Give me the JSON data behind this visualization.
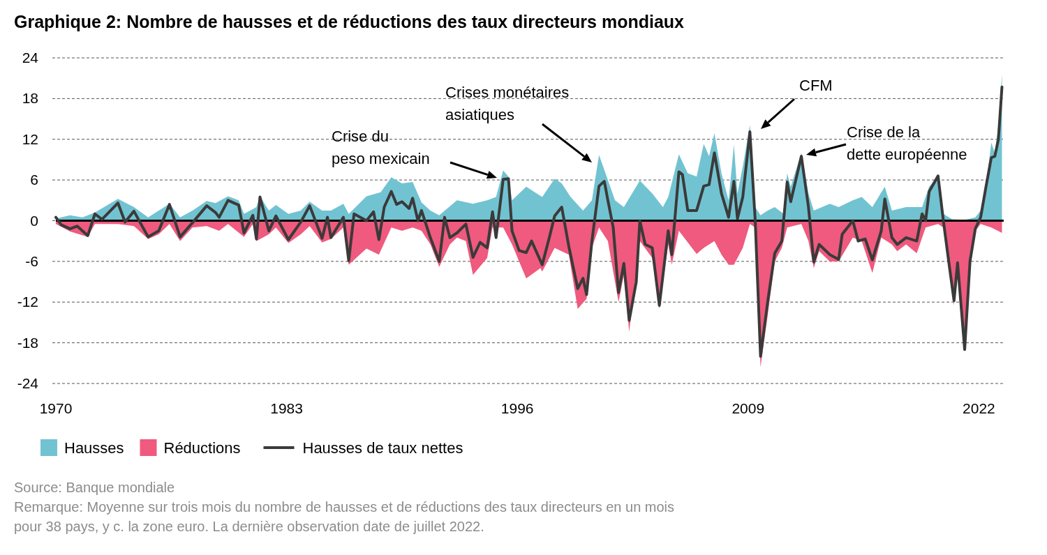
{
  "chart_data": {
    "type": "area",
    "title": "Graphique 2: Nombre de hausses et de réductions des taux directeurs mondiaux",
    "xlim": [
      1970,
      2023.4
    ],
    "xticks": [
      1970,
      1983,
      1996,
      2009,
      2022
    ],
    "ylim": [
      -24,
      24
    ],
    "yticks": [
      -24,
      -18,
      -12,
      -6,
      0,
      6,
      12,
      18,
      24
    ],
    "grid": "y",
    "legend": "bottom",
    "ref_lines": [
      {
        "axis": "y",
        "value": 0,
        "color": "#000000"
      }
    ],
    "series": [
      {
        "name": "Hausses",
        "type": "area",
        "color": "#72c3d1",
        "x": [
          1970,
          1970.8,
          1971.5,
          1972.2,
          1973.5,
          1974.4,
          1975.2,
          1975.8,
          1976.4,
          1977,
          1977.7,
          1978.5,
          1979,
          1979.7,
          1980.3,
          1980.6,
          1981.3,
          1981.5,
          1982,
          1982.4,
          1983.1,
          1983.8,
          1984.3,
          1985,
          1985.5,
          1986.2,
          1986.5,
          1987.5,
          1988.3,
          1988.9,
          1989.5,
          1990.1,
          1990.6,
          1991.1,
          1991.6,
          1992.6,
          1993.5,
          1994.3,
          1994.8,
          1995.2,
          1995.5,
          1995.7,
          1996.5,
          1997.4,
          1998.1,
          1998.5,
          1999,
          1999.7,
          2000.2,
          2000.6,
          2001.1,
          2001.5,
          2002,
          2002.9,
          2003.6,
          2004.2,
          2004.5,
          2005.1,
          2005.6,
          2006.1,
          2006.5,
          2006.8,
          2007.1,
          2007.5,
          2007.9,
          2008.2,
          2008.4,
          2008.7,
          2009.1,
          2009.4,
          2009.7,
          2010.1,
          2010.5,
          2011,
          2011.2,
          2011.4,
          2012,
          2012.4,
          2012.7,
          2013.6,
          2014.1,
          2014.9,
          2015.4,
          2016,
          2016.7,
          2017.1,
          2017.9,
          2018.5,
          2018.8,
          2019.2,
          2019.7,
          2020,
          2020.5,
          2021.2,
          2021.8,
          2022.1,
          2022.4,
          2022.7,
          2022.9,
          2023.1,
          2023.3
        ],
        "values": [
          0.3,
          0.8,
          0.5,
          1.2,
          3.2,
          2.0,
          0.5,
          1.5,
          2.5,
          0.5,
          1.5,
          2.9,
          2.6,
          3.6,
          3.0,
          1.0,
          2.0,
          3.6,
          1.5,
          2.3,
          1.0,
          1.5,
          2.8,
          1.5,
          1.5,
          2.5,
          1.0,
          3.6,
          4.2,
          6.4,
          5.5,
          5.7,
          2.7,
          1.5,
          0.8,
          3.0,
          2.5,
          3.0,
          3.5,
          7.4,
          6.5,
          3.0,
          5.0,
          3.5,
          6.2,
          5.5,
          3.5,
          1.5,
          3.0,
          9.7,
          6.0,
          3.0,
          2.0,
          5.9,
          4.0,
          2.0,
          3.5,
          9.8,
          7.0,
          6.5,
          11.3,
          9.5,
          12.9,
          7.0,
          3.0,
          11.2,
          4.0,
          8.0,
          14.1,
          2.0,
          0.8,
          1.5,
          2.0,
          1.0,
          7.0,
          5.0,
          10.0,
          4.0,
          1.5,
          2.5,
          2.0,
          3.0,
          3.5,
          2.0,
          5.0,
          1.5,
          2.0,
          2.0,
          2.0,
          5.0,
          6.5,
          1.0,
          0.2,
          0.1,
          0.5,
          1.5,
          5.0,
          11.5,
          10.0,
          14.0,
          21.6
        ]
      },
      {
        "name": "Réductions",
        "type": "area",
        "color": "#ef5a7e",
        "x": [
          1970,
          1970.8,
          1971.8,
          1972.2,
          1973.5,
          1974.4,
          1975.2,
          1975.8,
          1976.4,
          1977,
          1977.7,
          1978.5,
          1979.2,
          1979.7,
          1980.6,
          1981.1,
          1981.3,
          1982,
          1982.4,
          1983.1,
          1983.8,
          1984.3,
          1985,
          1985.5,
          1986.2,
          1986.5,
          1987.5,
          1988.2,
          1988.9,
          1989.5,
          1990.1,
          1990.6,
          1991.1,
          1991.6,
          1992.2,
          1992.6,
          1993.1,
          1993.5,
          1994.3,
          1994.6,
          1995.2,
          1995.7,
          1996.1,
          1996.5,
          1997.3,
          1997.4,
          1998.1,
          1998.9,
          1999.4,
          1999.9,
          2000.2,
          2000.6,
          2001.1,
          2001.7,
          2002,
          2002.3,
          2002.9,
          2003.6,
          2004,
          2004.5,
          2004.7,
          2005.1,
          2006.1,
          2006.5,
          2007.1,
          2007.5,
          2007.9,
          2008.2,
          2008.7,
          2009.1,
          2009.4,
          2009.7,
          2010.1,
          2010.5,
          2010.9,
          2011.2,
          2012,
          2012.4,
          2012.7,
          2013,
          2013.6,
          2014.1,
          2014.9,
          2015.4,
          2016,
          2016.5,
          2017.1,
          2017.4,
          2017.9,
          2018.5,
          2019,
          2019.7,
          2020,
          2020.6,
          2020.8,
          2021.2,
          2021.5,
          2021.8,
          2022.1,
          2022.7,
          2023.3
        ],
        "values": [
          -0.5,
          -1.6,
          -2.4,
          -0.5,
          -0.5,
          -0.8,
          -2.7,
          -2.0,
          -0.5,
          -3.0,
          -1.0,
          -0.8,
          -1.5,
          -0.5,
          -2.4,
          -0.5,
          -3.0,
          -2.0,
          -1.0,
          -3.3,
          -2.0,
          -0.8,
          -3.2,
          -2.7,
          -1.0,
          -6.5,
          -4.1,
          -5.0,
          -1.0,
          -1.5,
          -1.0,
          -1.5,
          -3.5,
          -6.8,
          -3.5,
          -2.5,
          -3.0,
          -8.0,
          -5.5,
          -1.0,
          -1.0,
          -3.5,
          -6.0,
          -8.5,
          -7.0,
          -7.5,
          -4.0,
          -5.0,
          -13.0,
          -11.5,
          -4.0,
          -1.0,
          -3.0,
          -12.0,
          -8.0,
          -16.4,
          -3.0,
          -5.5,
          -13.0,
          -3.5,
          -6.5,
          -1.5,
          -4.9,
          -4.0,
          -3.0,
          -5.0,
          -6.5,
          -6.5,
          -4.0,
          -0.5,
          -1.0,
          -21.6,
          -14.0,
          -6.0,
          -4.0,
          -1.0,
          -0.5,
          -3.0,
          -7.0,
          -4.5,
          -6.0,
          -6.0,
          -2.5,
          -3.0,
          -7.7,
          -2.5,
          -3.5,
          -4.5,
          -3.5,
          -4.8,
          -1.0,
          -0.5,
          -1.0,
          -12.5,
          -6.5,
          -19.0,
          -6.5,
          -1.5,
          -0.5,
          -1.0,
          -1.8
        ]
      },
      {
        "name": "Hausses de taux nettes",
        "type": "line",
        "color": "#3a3a3a",
        "x": [
          1970,
          1970.3,
          1970.8,
          1971.2,
          1971.8,
          1972.2,
          1972.6,
          1973.5,
          1973.9,
          1974.4,
          1975.2,
          1975.8,
          1976.4,
          1977,
          1977.7,
          1978.5,
          1979,
          1979.2,
          1979.7,
          1980.3,
          1980.6,
          1981.1,
          1981.3,
          1981.5,
          1982,
          1982.4,
          1983.1,
          1983.8,
          1984.3,
          1985,
          1985.3,
          1985.5,
          1986.2,
          1986.5,
          1986.8,
          1987.5,
          1987.9,
          1988.2,
          1988.5,
          1988.9,
          1989.2,
          1989.5,
          1989.9,
          1990.1,
          1990.4,
          1990.6,
          1991.1,
          1991.6,
          1991.9,
          1992.2,
          1992.6,
          1993.1,
          1993.5,
          1993.9,
          1994.3,
          1994.6,
          1994.8,
          1995.2,
          1995.5,
          1995.7,
          1996.1,
          1996.5,
          1996.8,
          1997.4,
          1997.8,
          1998.1,
          1998.5,
          1998.9,
          1999.4,
          1999.7,
          1999.9,
          2000.2,
          2000.6,
          2000.9,
          2001.1,
          2001.4,
          2001.7,
          2002,
          2002.3,
          2002.7,
          2002.9,
          2003.2,
          2003.6,
          2004,
          2004.5,
          2004.7,
          2005.1,
          2005.3,
          2005.6,
          2006.1,
          2006.5,
          2006.8,
          2007.1,
          2007.5,
          2007.9,
          2008.2,
          2008.4,
          2008.7,
          2009.1,
          2009.4,
          2009.7,
          2010.1,
          2010.5,
          2010.9,
          2011,
          2011.2,
          2011.4,
          2012,
          2012.4,
          2012.7,
          2013,
          2013.6,
          2014.1,
          2014.3,
          2014.9,
          2015.2,
          2015.6,
          2016,
          2016.5,
          2016.7,
          2017.1,
          2017.4,
          2017.9,
          2018.5,
          2018.8,
          2019,
          2019.2,
          2019.7,
          2020,
          2020.3,
          2020.6,
          2020.8,
          2021.2,
          2021.5,
          2021.8,
          2022.1,
          2022.4,
          2022.7,
          2022.9,
          2023.1,
          2023.3
        ],
        "values": [
          0.5,
          -0.6,
          -1.2,
          -0.8,
          -2.2,
          1.0,
          0.2,
          2.6,
          -0.2,
          1.4,
          -2.4,
          -1.5,
          2.4,
          -2.4,
          -0.3,
          2.2,
          1.2,
          0.5,
          3.0,
          2.3,
          -1.8,
          0.8,
          -2.7,
          3.5,
          -1.5,
          0.7,
          -2.8,
          -0.2,
          2.2,
          -2.6,
          0.5,
          -2.5,
          0.5,
          -5.9,
          1.0,
          0.0,
          1.3,
          -2.8,
          2.0,
          4.3,
          2.4,
          2.8,
          1.8,
          3.3,
          0.0,
          1.5,
          -2.5,
          -6.0,
          0.5,
          -2.5,
          -1.8,
          -0.5,
          -5.4,
          -3.2,
          -4.0,
          1.3,
          -2.5,
          6.1,
          6.2,
          -1.5,
          -4.4,
          -4.7,
          -3.0,
          -6.5,
          -2.5,
          0.7,
          2.0,
          -3.8,
          -10.0,
          -8.5,
          -10.9,
          -3.0,
          5.1,
          5.8,
          3.0,
          -1.0,
          -10.6,
          -6.3,
          -14.7,
          -9.0,
          0.0,
          -3.5,
          -4.0,
          -12.5,
          -1.5,
          -5.0,
          7.2,
          6.8,
          1.5,
          1.5,
          5.1,
          5.3,
          10.0,
          4.0,
          0.5,
          5.8,
          0.3,
          3.5,
          13.1,
          0.0,
          -20.0,
          -12.0,
          -4.8,
          -3.0,
          0.0,
          5.7,
          2.8,
          9.5,
          2.0,
          -6.1,
          -3.5,
          -5.0,
          -5.7,
          -2.0,
          0.0,
          -3.0,
          -2.7,
          -5.8,
          -1.5,
          3.2,
          -2.5,
          -3.5,
          -2.5,
          -3.0,
          1.0,
          0.0,
          4.3,
          6.6,
          0.0,
          -6.0,
          -11.8,
          -6.2,
          -19.0,
          -6.0,
          -1.2,
          0.5,
          5.0,
          9.3,
          9.5,
          12.0,
          19.7
        ]
      }
    ],
    "annotations": [
      "Crise du\npeso mexicain",
      "Crises monétaires\nasiatiques",
      "CFM",
      "Crise de la\ndette européenne",
      "Source: Banque mondiale",
      "Remarque: Moyenne sur trois mois du nombre de hausses et de réductions des taux directeurs en un mois pour 38 pays, y c. la zone euro. La dernière observation date de juillet 2022."
    ]
  }
}
